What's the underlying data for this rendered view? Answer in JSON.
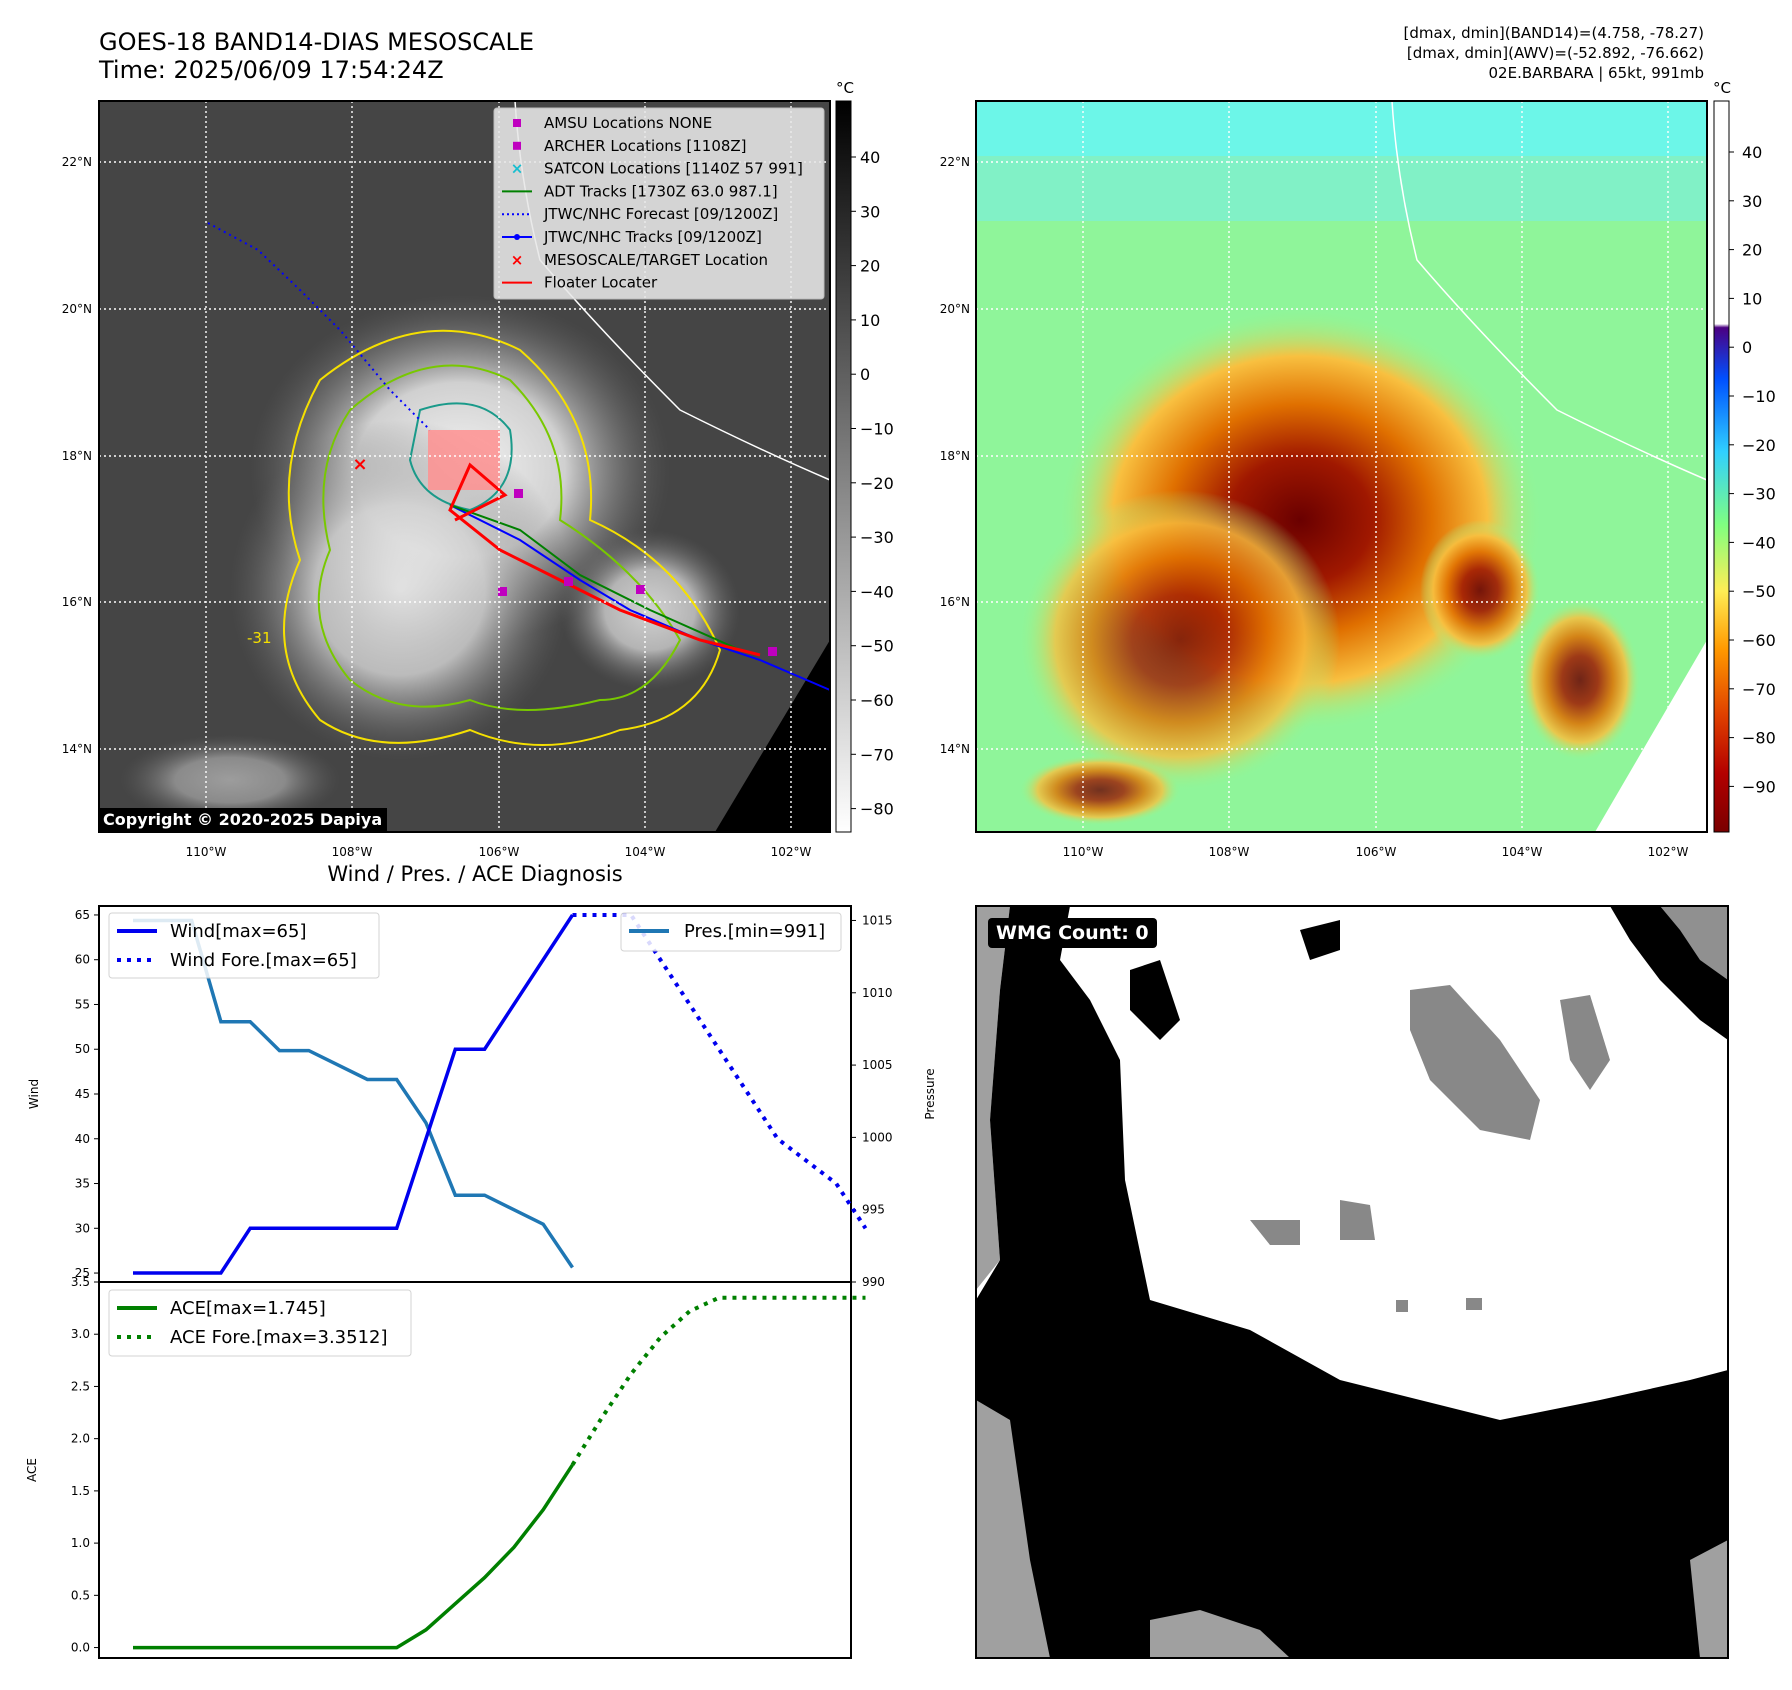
{
  "header": {
    "title_line1": "GOES-18 BAND14-DIAS MESOSCALE",
    "title_line2": "Time: 2025/06/09 17:54:24Z",
    "info_line1": "[dmax, dmin](BAND14)=(4.758, -78.27)",
    "info_line2": "[dmax, dmin](AWV)=(-52.892, -76.662)",
    "info_line3": "02E.BARBARA | 65kt, 991mb"
  },
  "copyright": "Copyright © 2020-2025 Dapiya",
  "wmg_count_label": "WMG Count: 0",
  "diagnosis_title": "Wind / Pres. / ACE Diagnosis",
  "colors": {
    "wind": "#0000ee",
    "pressure": "#1f77b4",
    "ace": "#008000",
    "adt": "#008000",
    "forecast": "#0000ff",
    "tracks": "#0000ff",
    "target": "#ff0000",
    "floater": "#ff0000",
    "amsu": "#bf00bf",
    "satcon": "#17becf"
  },
  "map_axes": {
    "lat_ticks": [
      "22°N",
      "20°N",
      "18°N",
      "16°N",
      "14°N"
    ],
    "lon_ticks": [
      "110°W",
      "108°W",
      "106°W",
      "104°W",
      "102°W"
    ]
  },
  "map_legend": [
    {
      "label": "AMSU Locations NONE",
      "marker": "square",
      "color": "#bf00bf"
    },
    {
      "label": "ARCHER Locations [1108Z]",
      "marker": "square",
      "color": "#bf00bf"
    },
    {
      "label": "SATCON Locations [1140Z 57 991]",
      "marker": "x",
      "color": "#17becf"
    },
    {
      "label": "ADT Tracks [1730Z 63.0 987.1]",
      "marker": "line",
      "color": "#008000"
    },
    {
      "label": "JTWC/NHC Forecast [09/1200Z]",
      "marker": "dotted",
      "color": "#0000ff"
    },
    {
      "label": "JTWC/NHC Tracks [09/1200Z]",
      "marker": "line-dot",
      "color": "#0000ff"
    },
    {
      "label": "MESOSCALE/TARGET Location",
      "marker": "x",
      "color": "#ff0000"
    },
    {
      "label": "Floater Locater",
      "marker": "line",
      "color": "#ff0000"
    }
  ],
  "contour_label": "-31",
  "colorbar_left": {
    "unit": "°C",
    "ticks": [
      "40",
      "30",
      "20",
      "10",
      "0",
      "−10",
      "−20",
      "−30",
      "−40",
      "−50",
      "−60",
      "−70",
      "−80"
    ]
  },
  "colorbar_right": {
    "unit": "°C",
    "ticks": [
      "40",
      "30",
      "20",
      "10",
      "0",
      "−10",
      "−20",
      "−30",
      "−40",
      "−50",
      "−60",
      "−70",
      "−80",
      "−90"
    ]
  },
  "chart_data": [
    {
      "type": "line",
      "title": "Wind / Pres. / ACE Diagnosis",
      "ylabel": "Wind",
      "ylim": [
        24,
        66
      ],
      "yticks": [
        25,
        30,
        35,
        40,
        45,
        50,
        55,
        60,
        65
      ],
      "y2label": "Pressure",
      "y2lim": [
        990,
        1016
      ],
      "y2ticks": [
        990,
        995,
        1000,
        1005,
        1010,
        1015
      ],
      "legend_left": [
        "Wind[max=65]",
        "Wind Fore.[max=65]"
      ],
      "legend_right": [
        "Pres.[min=991]"
      ],
      "wind": [
        [
          0,
          25
        ],
        [
          3,
          25
        ],
        [
          4,
          30
        ],
        [
          9,
          30
        ],
        [
          11,
          50
        ],
        [
          12,
          50
        ],
        [
          15,
          65
        ]
      ],
      "wind_forecast": [
        [
          15,
          65
        ],
        [
          17,
          65
        ],
        [
          19,
          55
        ],
        [
          21,
          45
        ],
        [
          22,
          40
        ],
        [
          24,
          35
        ],
        [
          23,
          37
        ],
        [
          25,
          30
        ]
      ],
      "pressure": [
        [
          0,
          1015
        ],
        [
          2,
          1015
        ],
        [
          3,
          1008
        ],
        [
          4,
          1008
        ],
        [
          5,
          1006
        ],
        [
          6,
          1006
        ],
        [
          8,
          1004
        ],
        [
          9,
          1004
        ],
        [
          10,
          1001
        ],
        [
          11,
          996
        ],
        [
          12,
          996
        ],
        [
          14,
          994
        ],
        [
          15,
          991
        ]
      ]
    },
    {
      "type": "line",
      "ylabel": "ACE",
      "ylim": [
        -0.1,
        3.5
      ],
      "yticks": [
        "0.0",
        "0.5",
        "1.0",
        "1.5",
        "2.0",
        "2.5",
        "3.0",
        "3.5"
      ],
      "legend": [
        "ACE[max=1.745]",
        "ACE Fore.[max=3.3512]"
      ],
      "ace": [
        [
          0,
          0
        ],
        [
          9,
          0
        ],
        [
          10,
          0.17
        ],
        [
          11,
          0.42
        ],
        [
          12,
          0.67
        ],
        [
          13,
          0.96
        ],
        [
          14,
          1.32
        ],
        [
          15,
          1.75
        ]
      ],
      "ace_forecast": [
        [
          15,
          1.75
        ],
        [
          16,
          2.2
        ],
        [
          17,
          2.62
        ],
        [
          18,
          2.97
        ],
        [
          19,
          3.22
        ],
        [
          20,
          3.35
        ],
        [
          25,
          3.35
        ]
      ]
    }
  ]
}
